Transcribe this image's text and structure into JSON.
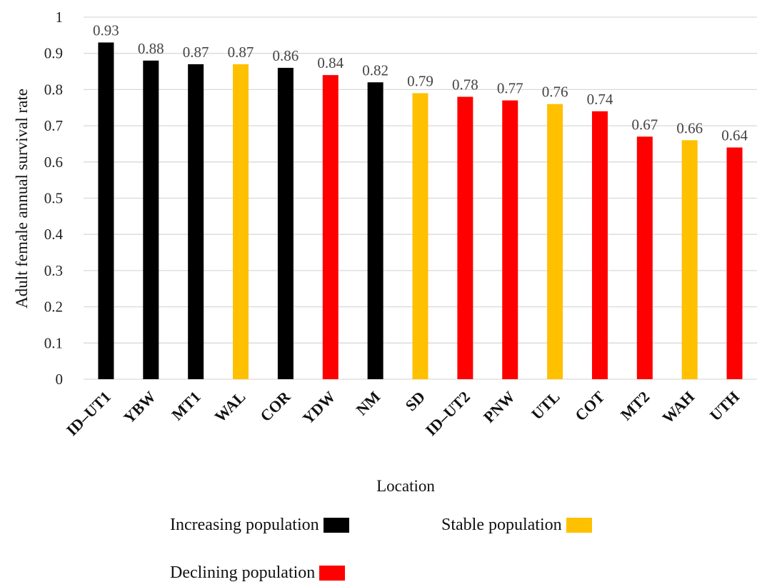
{
  "chart_data": {
    "type": "bar",
    "categories": [
      "ID–UT1",
      "YBW",
      "MT1",
      "WAL",
      "COR",
      "YDW",
      "NM",
      "SD",
      "ID–UT2",
      "PNW",
      "UTL",
      "COT",
      "MT2",
      "WAH",
      "UTH"
    ],
    "values": [
      0.93,
      0.88,
      0.87,
      0.87,
      0.86,
      0.84,
      0.82,
      0.79,
      0.78,
      0.77,
      0.76,
      0.74,
      0.67,
      0.66,
      0.64
    ],
    "value_labels": [
      "0.93",
      "0.88",
      "0.87",
      "0.87",
      "0.86",
      "0.84",
      "0.82",
      "0.79",
      "0.78",
      "0.77",
      "0.76",
      "0.74",
      "0.67",
      "0.66",
      "0.64"
    ],
    "status": [
      "increasing",
      "increasing",
      "increasing",
      "stable",
      "increasing",
      "declining",
      "increasing",
      "stable",
      "declining",
      "declining",
      "stable",
      "declining",
      "declining",
      "stable",
      "declining"
    ],
    "xlabel": "Location",
    "ylabel": "Adult female annual survival rate",
    "ylim": [
      0,
      1
    ],
    "yticks": [
      0,
      0.1,
      0.2,
      0.3,
      0.4,
      0.5,
      0.6,
      0.7,
      0.8,
      0.9,
      1
    ],
    "ytick_labels": [
      "0",
      "0.1",
      "0.2",
      "0.3",
      "0.4",
      "0.5",
      "0.6",
      "0.7",
      "0.8",
      "0.9",
      "1"
    ],
    "grid": true,
    "legend_position": "bottom",
    "legend": [
      {
        "key": "increasing",
        "label": "Increasing population",
        "color": "#000000"
      },
      {
        "key": "stable",
        "label": "Stable population",
        "color": "#FFC000"
      },
      {
        "key": "declining",
        "label": "Declining population",
        "color": "#FF0000"
      }
    ]
  },
  "colors": {
    "increasing": "#000000",
    "stable": "#FFC000",
    "declining": "#FF0000",
    "gridline": "#d9d9d9"
  }
}
